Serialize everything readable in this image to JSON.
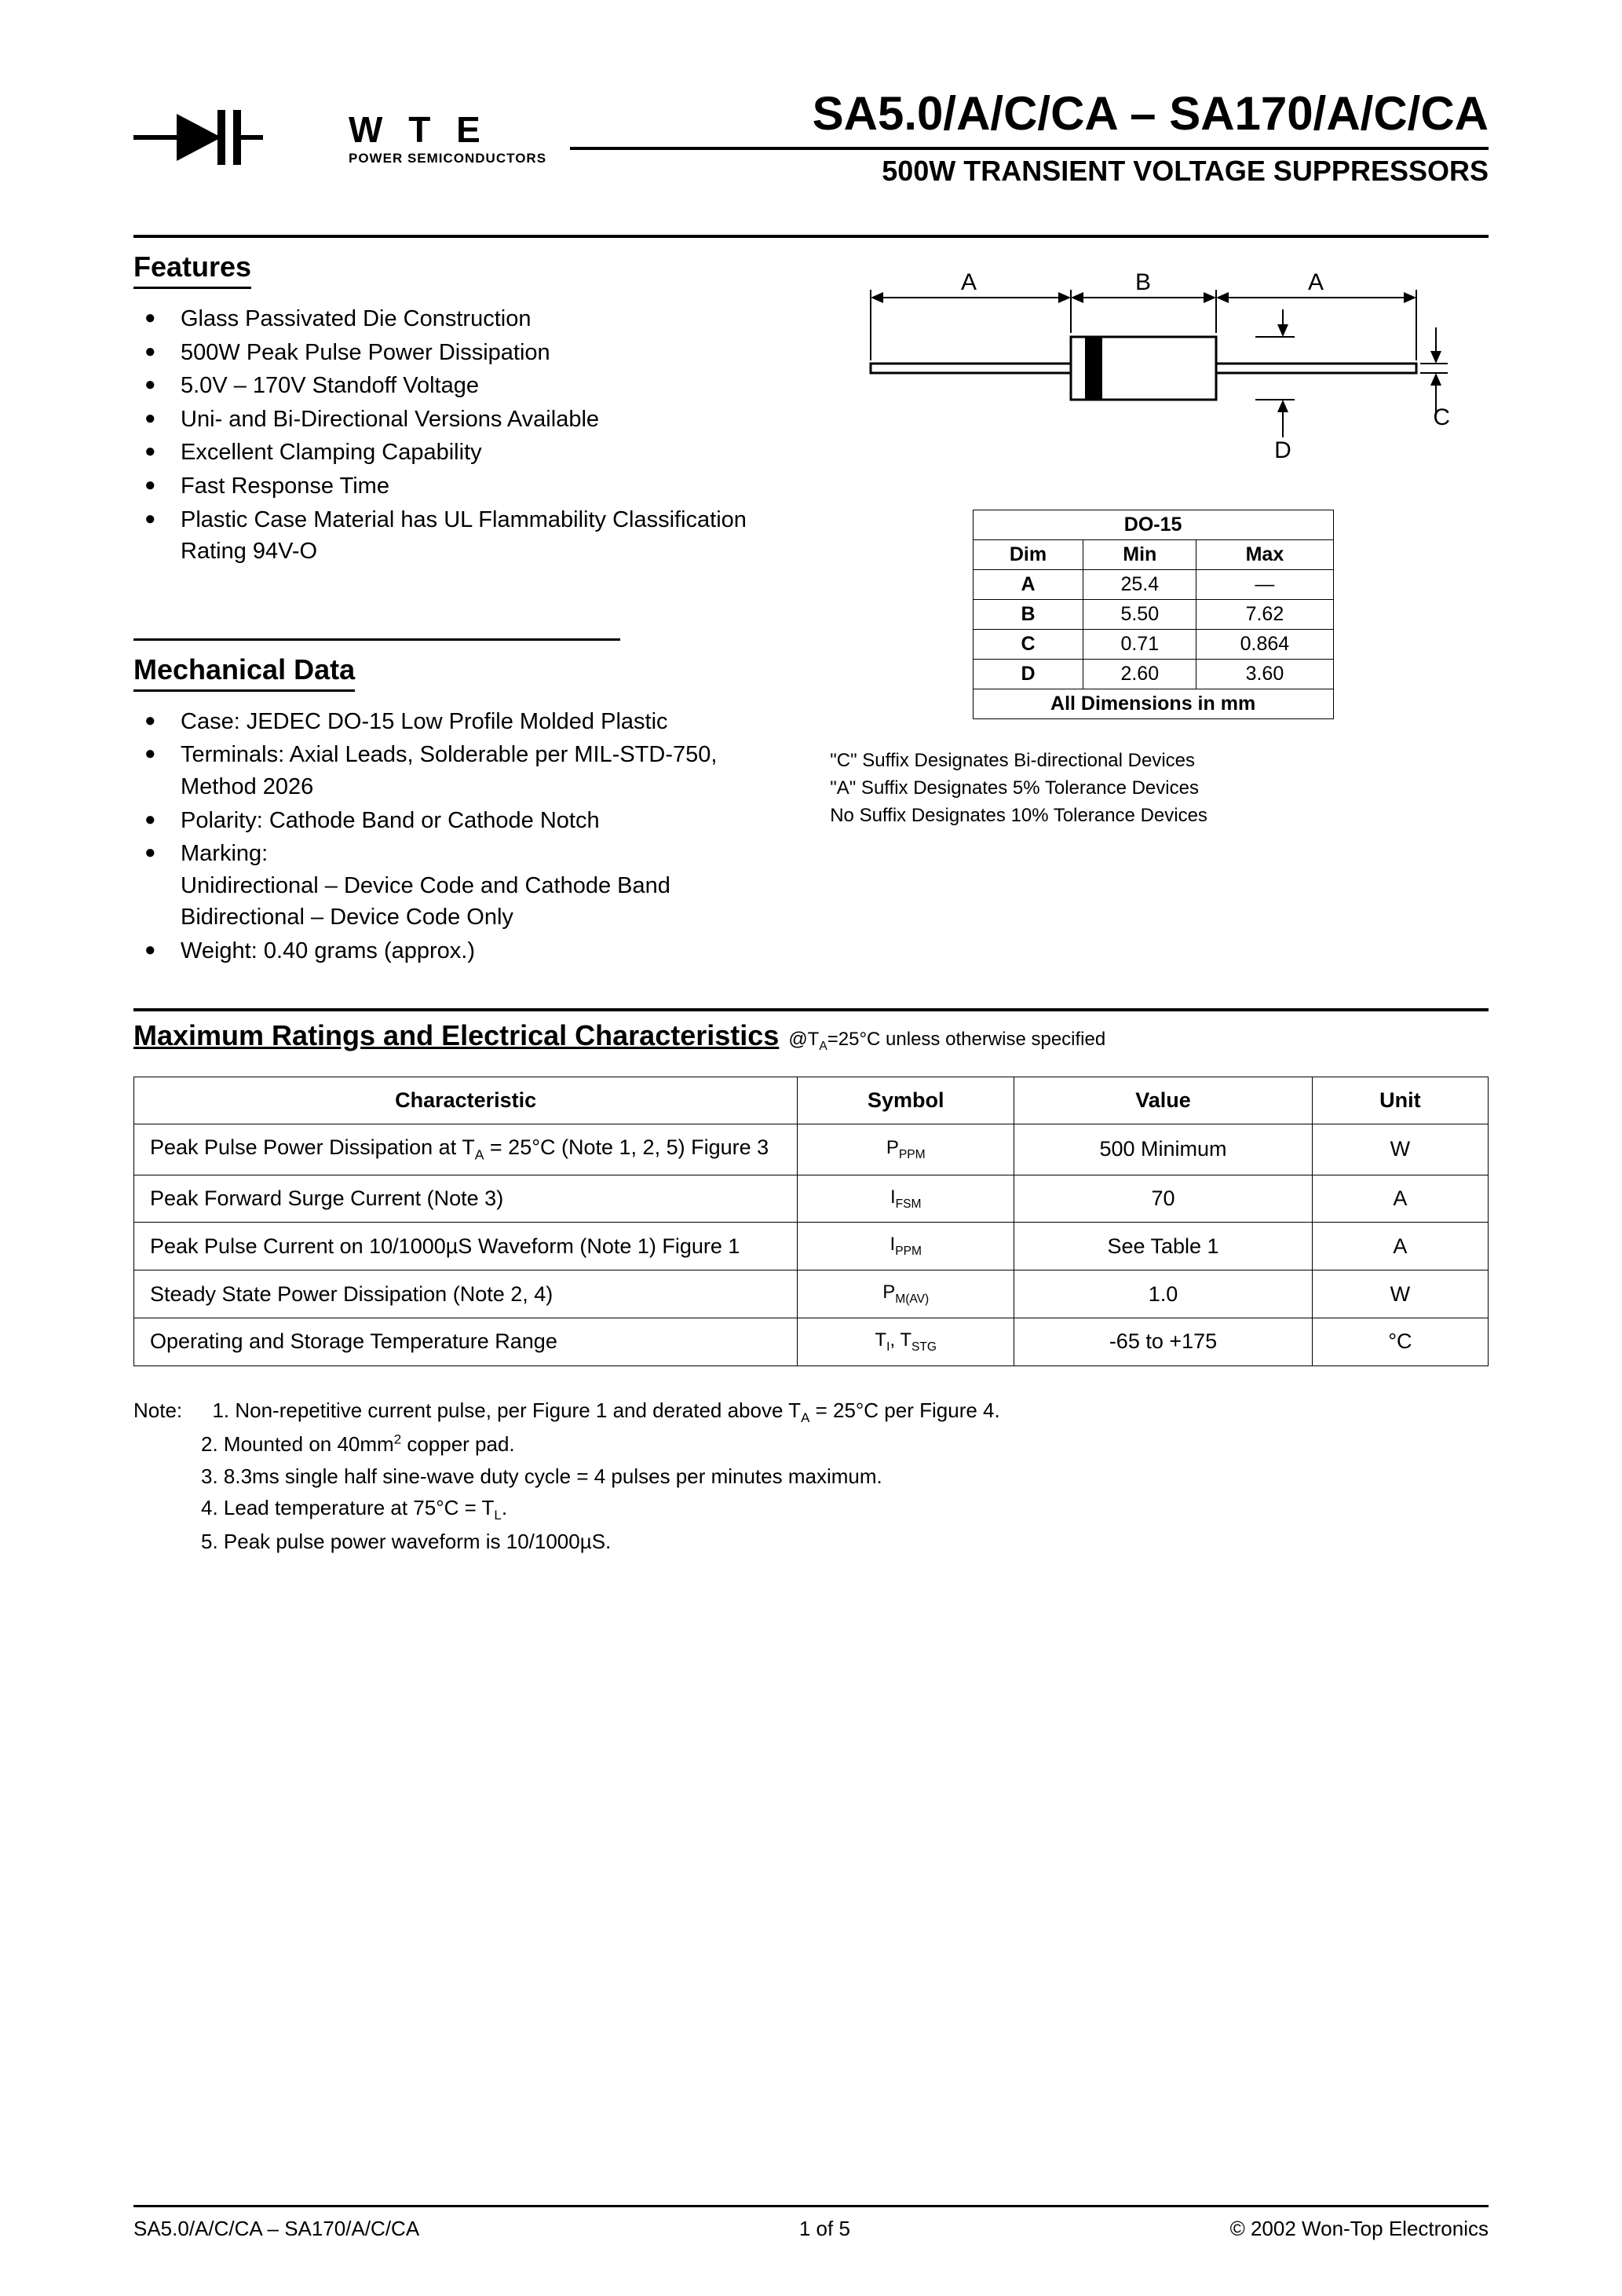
{
  "logo": {
    "brand": "W T E",
    "tagline": "POWER SEMICONDUCTORS"
  },
  "title": "SA5.0/A/C/CA – SA170/A/C/CA",
  "subtitle": "500W TRANSIENT VOLTAGE SUPPRESSORS",
  "features": {
    "heading": "Features",
    "items": [
      "Glass Passivated Die Construction",
      "500W Peak Pulse Power Dissipation",
      "5.0V – 170V Standoff Voltage",
      "Uni- and Bi-Directional Versions Available",
      "Excellent Clamping Capability",
      "Fast Response Time",
      "Plastic Case Material has UL Flammability Classification Rating 94V-O"
    ]
  },
  "mechanical": {
    "heading": "Mechanical Data",
    "items": [
      "Case: JEDEC DO-15 Low Profile Molded Plastic",
      "Terminals: Axial Leads, Solderable per MIL-STD-750, Method 2026",
      "Polarity: Cathode Band or Cathode Notch",
      "Marking:\nUnidirectional – Device Code and Cathode Band\nBidirectional – Device Code Only",
      "Weight: 0.40 grams (approx.)"
    ]
  },
  "package_diagram": {
    "labels": {
      "A": "A",
      "B": "B",
      "C": "C",
      "D": "D"
    },
    "colors": {
      "line": "#000000",
      "body_fill": "#ffffff",
      "band_fill": "#000000"
    },
    "line_width": 3
  },
  "dimensions_table": {
    "title": "DO-15",
    "columns": [
      "Dim",
      "Min",
      "Max"
    ],
    "rows": [
      [
        "A",
        "25.4",
        "—"
      ],
      [
        "B",
        "5.50",
        "7.62"
      ],
      [
        "C",
        "0.71",
        "0.864"
      ],
      [
        "D",
        "2.60",
        "3.60"
      ]
    ],
    "footer": "All Dimensions in mm"
  },
  "suffix_notes": [
    "\"C\" Suffix Designates Bi-directional Devices",
    "\"A\" Suffix Designates 5% Tolerance Devices",
    "No Suffix Designates 10% Tolerance Devices"
  ],
  "ratings": {
    "heading": "Maximum Ratings and Electrical Characteristics",
    "condition_prefix": "@T",
    "condition_sub": "A",
    "condition_suffix": "=25°C unless otherwise specified",
    "columns": [
      "Characteristic",
      "Symbol",
      "Value",
      "Unit"
    ],
    "col_widths": [
      "49%",
      "16%",
      "22%",
      "13%"
    ],
    "rows": [
      {
        "char_html": "Peak Pulse Power Dissipation at T<sub>A</sub> = 25°C (Note 1, 2, 5) Figure 3",
        "symbol_html": "P<sub>PPM</sub>",
        "value": "500 Minimum",
        "unit": "W"
      },
      {
        "char_html": "Peak Forward Surge Current (Note 3)",
        "symbol_html": "I<sub>FSM</sub>",
        "value": "70",
        "unit": "A"
      },
      {
        "char_html": "Peak Pulse Current on 10/1000µS Waveform (Note 1) Figure 1",
        "symbol_html": "I<sub>PPM</sub>",
        "value": "See Table 1",
        "unit": "A"
      },
      {
        "char_html": "Steady State Power Dissipation (Note 2, 4)",
        "symbol_html": "P<sub>M(AV)</sub>",
        "value": "1.0",
        "unit": "W"
      },
      {
        "char_html": "Operating and Storage Temperature Range",
        "symbol_html": "T<sub>I</sub>, T<sub>STG</sub>",
        "value": "-65 to +175",
        "unit": "°C"
      }
    ]
  },
  "notes": {
    "label": "Note:",
    "items": [
      "1. Non-repetitive current pulse, per Figure 1 and derated above T<sub>A</sub> = 25°C per Figure 4.",
      "2. Mounted on 40mm<sup>2</sup> copper pad.",
      "3. 8.3ms single half sine-wave duty cycle = 4 pulses per minutes maximum.",
      "4. Lead temperature at 75°C = T<sub>L</sub>.",
      "5. Peak pulse power waveform is 10/1000µS."
    ]
  },
  "footer": {
    "left": "SA5.0/A/C/CA – SA170/A/C/CA",
    "center": "1  of  5",
    "right": "© 2002 Won-Top Electronics"
  },
  "colors": {
    "text": "#000000",
    "background": "#ffffff",
    "rule": "#000000",
    "table_border": "#000000"
  }
}
